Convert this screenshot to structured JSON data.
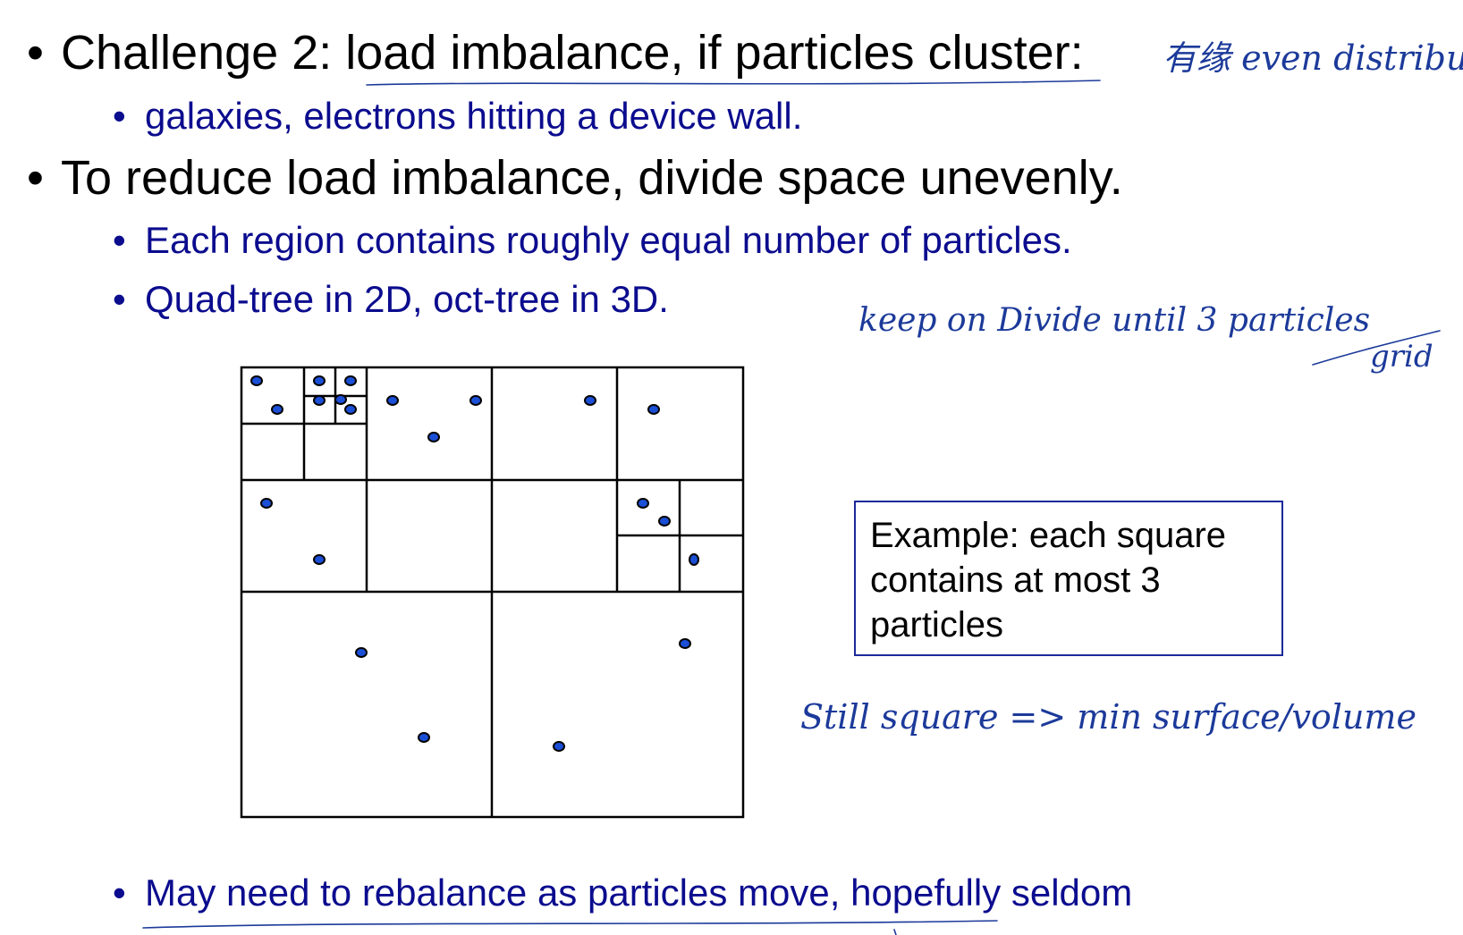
{
  "bullets": {
    "challenge": "Challenge 2: load imbalance, if particles cluster:",
    "galaxies": "galaxies, electrons hitting a device wall.",
    "reduce": "To reduce load imbalance, divide space unevenly.",
    "each_region": "Each region contains roughly equal number of particles.",
    "quadtree": "Quad-tree in 2D, oct-tree in 3D.",
    "rebalance": "May need to rebalance as particles move, hopefully seldom"
  },
  "bullet_symbol": "•",
  "example_box": "Example: each square contains at most 3 particles",
  "handwriting": {
    "note_top": "有缘 even distribut",
    "note_divide": "keep on Divide until 3 particles",
    "note_grid": "grid",
    "note_square": "Still square => min surface/volume"
  },
  "colors": {
    "text": "#000000",
    "subtext": "#0b0c8e",
    "particle": "#1a4fd6",
    "ink": "#1c3a9a"
  }
}
